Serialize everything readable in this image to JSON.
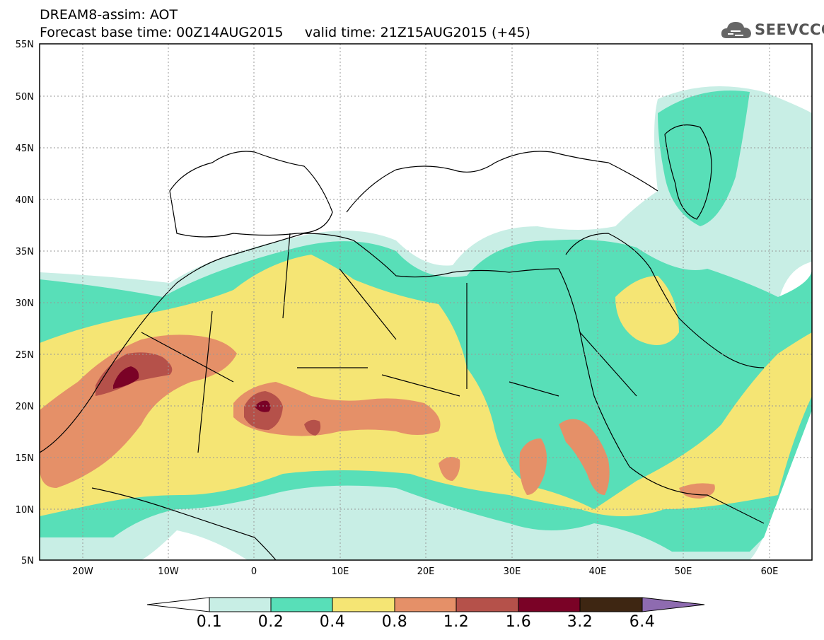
{
  "header": {
    "title": "DREAM8-assim: AOT",
    "base_time": "Forecast base time: 00Z14AUG2015",
    "valid_time": "valid time: 21Z15AUG2015 (+45)"
  },
  "logo": {
    "text": "SEEVCCC",
    "icon": "cloud-icon"
  },
  "axes": {
    "lat_labels": [
      "55N",
      "50N",
      "45N",
      "40N",
      "35N",
      "30N",
      "25N",
      "20N",
      "15N",
      "10N",
      "5N"
    ],
    "lon_labels": [
      "20W",
      "10W",
      "0",
      "10E",
      "20E",
      "30E",
      "40E",
      "50E",
      "60E"
    ]
  },
  "colorbar": {
    "labels": [
      "0.1",
      "0.2",
      "0.4",
      "0.8",
      "1.2",
      "1.6",
      "3.2",
      "6.4"
    ],
    "colors": [
      "#ffffff",
      "#c8eee5",
      "#58dfb8",
      "#f5e574",
      "#e59068",
      "#b5514a",
      "#7a0226",
      "#3e2612",
      "#8e6bb0"
    ]
  },
  "map_colors": {
    "c1": "#c8eee5",
    "c2": "#58dfb8",
    "c3": "#f5e574",
    "c4": "#e59068",
    "c5": "#b5514a",
    "c6": "#7a0226"
  }
}
